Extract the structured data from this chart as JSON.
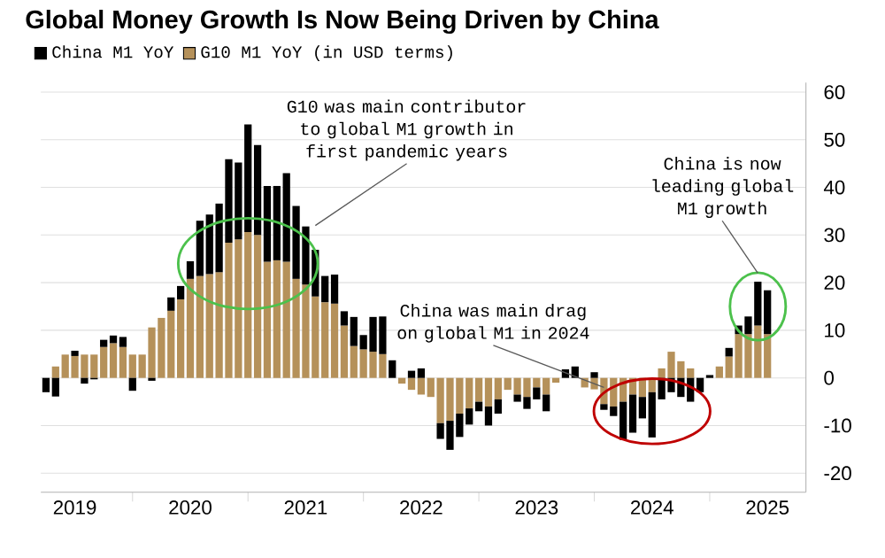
{
  "chart_data": {
    "type": "bar",
    "title": "Global Money Growth Is Now Being Driven by China",
    "stacked": true,
    "legend": "top left",
    "grid": "y",
    "x": [
      "2019-04",
      "2019-05",
      "2019-06",
      "2019-07",
      "2019-08",
      "2019-09",
      "2019-10",
      "2019-11",
      "2019-12",
      "2020-01",
      "2020-02",
      "2020-03",
      "2020-04",
      "2020-05",
      "2020-06",
      "2020-07",
      "2020-08",
      "2020-09",
      "2020-10",
      "2020-11",
      "2020-12",
      "2021-01",
      "2021-02",
      "2021-03",
      "2021-04",
      "2021-05",
      "2021-06",
      "2021-07",
      "2021-08",
      "2021-09",
      "2021-10",
      "2021-11",
      "2021-12",
      "2022-01",
      "2022-02",
      "2022-03",
      "2022-04",
      "2022-05",
      "2022-06",
      "2022-07",
      "2022-08",
      "2022-09",
      "2022-10",
      "2022-11",
      "2022-12",
      "2023-01",
      "2023-02",
      "2023-03",
      "2023-04",
      "2023-05",
      "2023-06",
      "2023-07",
      "2023-08",
      "2023-09",
      "2023-10",
      "2023-11",
      "2023-12",
      "2024-01",
      "2024-02",
      "2024-03",
      "2024-04",
      "2024-05",
      "2024-06",
      "2024-07",
      "2024-08",
      "2024-09",
      "2024-10",
      "2024-11",
      "2024-12",
      "2025-01",
      "2025-02",
      "2025-03",
      "2025-04",
      "2025-05",
      "2025-06",
      "2025-07"
    ],
    "series": [
      {
        "name": "G10 M1 YoY (in USD terms)",
        "color": "#b5915a",
        "values": [
          0,
          2.4,
          4.9,
          4.6,
          4.9,
          4.9,
          6.5,
          7.3,
          6.5,
          4.9,
          4.9,
          10.6,
          12.6,
          14.1,
          16.5,
          20.8,
          21.4,
          21.8,
          22.2,
          28.4,
          29.1,
          30.6,
          30,
          24.4,
          24.7,
          24.4,
          20.8,
          19.6,
          17.1,
          15.9,
          15.6,
          11,
          6.7,
          6,
          5.5,
          5,
          0,
          -1.2,
          -2.5,
          -3.5,
          -4,
          -9.5,
          -9,
          -7.5,
          -6.4,
          -5,
          -6,
          -4.5,
          -2.5,
          -3.5,
          -4,
          -2,
          -3.5,
          -1,
          0,
          0,
          -2,
          -2.4,
          -5.5,
          -6,
          -5,
          -3.5,
          -4,
          -3,
          2,
          5.5,
          3.5,
          2,
          0,
          0,
          2.4,
          4.5,
          9.2,
          9.2,
          11,
          9.2
        ]
      },
      {
        "name": "China M1 YoY",
        "color": "#000000",
        "values": [
          -3,
          -3.9,
          0,
          1.1,
          -1.2,
          -0.3,
          1.5,
          1.6,
          2.1,
          -2.7,
          0,
          -0.6,
          0,
          2.8,
          2.8,
          3.7,
          11.6,
          12.5,
          14.4,
          17.5,
          16.1,
          22.6,
          18.9,
          15.9,
          15.6,
          18.6,
          15.3,
          12.2,
          9.8,
          5.5,
          6.1,
          3,
          6.1,
          3,
          7.3,
          7.9,
          3.7,
          0,
          1.5,
          2,
          0,
          -3.3,
          -6.1,
          -4.9,
          -3.4,
          -2,
          -4,
          -3,
          0,
          -1.5,
          -2.5,
          -2.5,
          -3.5,
          0,
          1.8,
          2.4,
          0,
          1.2,
          -1.2,
          -2,
          -8,
          -8,
          -4.5,
          -9.5,
          -4.5,
          -3,
          -4,
          -5,
          -3,
          0.6,
          0,
          1.8,
          1.8,
          3.7,
          9.2,
          9.2
        ]
      }
    ],
    "xlim": [
      "2019-03-15",
      "2025-11"
    ],
    "xticks": [
      {
        "value": "2020-01",
        "label": null
      },
      {
        "value": "2021-01",
        "label": null
      },
      {
        "value": "2022-01",
        "label": null
      },
      {
        "value": "2023-01",
        "label": null
      },
      {
        "value": "2024-01",
        "label": null
      },
      {
        "value": "2025-01",
        "label": null
      },
      {
        "value": "2019-07",
        "label": "2019"
      },
      {
        "value": "2020-07",
        "label": "2020"
      },
      {
        "value": "2021-07",
        "label": "2021"
      },
      {
        "value": "2022-07",
        "label": "2022"
      },
      {
        "value": "2023-07",
        "label": "2023"
      },
      {
        "value": "2024-07",
        "label": "2024"
      },
      {
        "value": "2025-07",
        "label": "2025"
      }
    ],
    "ylim": [
      -24,
      62
    ],
    "yticks": [
      -20,
      -10,
      0,
      10,
      20,
      30,
      40,
      50,
      60
    ],
    "annotations": [
      {
        "text": "G10 was main contributor to global M1 growth in first pandemic years",
        "x": "2021-08",
        "y": 32
      },
      {
        "text": "China was main drag on global M1 in 2024",
        "x": "2024-02",
        "y": -2
      },
      {
        "text": "China is now leading global M1 growth",
        "x": "2025-06",
        "y": 22
      }
    ]
  }
}
